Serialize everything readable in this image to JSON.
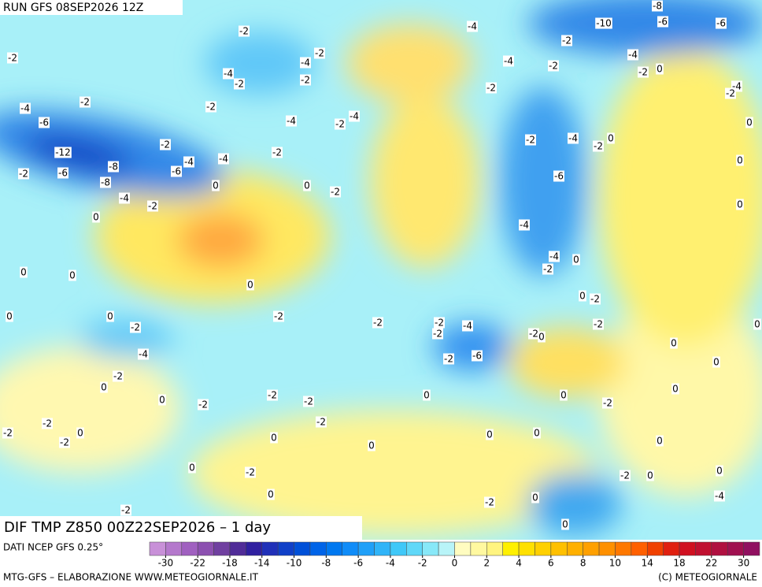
{
  "header": {
    "run": "RUN GFS 08SEP2026 12Z",
    "field": "DIF TMP Z850 00Z22SEP2026 – 1 day"
  },
  "map": {
    "contour_labels": [
      -2,
      -2,
      -4,
      -10,
      -8,
      -6,
      -6,
      -2,
      -4,
      -2,
      -4,
      -2,
      0,
      -2,
      -4,
      -2,
      -4,
      -2,
      -2,
      -4,
      -2,
      -4,
      -2,
      -2,
      -6,
      -4,
      -2,
      -4,
      0,
      -2,
      -2,
      -4,
      -2,
      0,
      -12,
      -2,
      -4,
      -4,
      -8,
      -6,
      -2,
      -6,
      0,
      -8,
      -6,
      0,
      0,
      -2,
      -4,
      -2,
      0,
      -4,
      0,
      -4,
      0,
      -2,
      0,
      0,
      0,
      0,
      -2,
      0,
      -2,
      0,
      -2,
      -2,
      -2,
      -4,
      -2,
      -2,
      0,
      -2,
      0,
      0,
      -4,
      -2,
      -6,
      0,
      -2,
      0,
      0,
      -2,
      -2,
      0,
      0,
      0,
      -2,
      -2,
      -2,
      -2,
      -2,
      0,
      -2,
      0,
      0,
      0,
      0,
      0,
      0,
      -2,
      -2,
      0,
      0,
      0,
      -2,
      0,
      -4,
      0,
      -2
    ]
  },
  "colorbar": {
    "source": "DATI NCEP GFS 0.25°",
    "colors": [
      "#c890d8",
      "#b478cc",
      "#a060c0",
      "#8c50b0",
      "#7040a0",
      "#502c98",
      "#3020a0",
      "#2030b8",
      "#1040c8",
      "#0050d8",
      "#0064e8",
      "#0078f0",
      "#108cf8",
      "#20a0f8",
      "#30b4f8",
      "#40c8f8",
      "#60d8f8",
      "#88e8f8",
      "#b8f4f8",
      "#fffcc0",
      "#fff8a0",
      "#fff480",
      "#fff000",
      "#ffe000",
      "#ffd000",
      "#ffc000",
      "#ffb000",
      "#ffa000",
      "#ff9000",
      "#ff7800",
      "#ff6000",
      "#f04000",
      "#e02010",
      "#d01020",
      "#c01030",
      "#b01040",
      "#a01050",
      "#901060"
    ],
    "ticks": [
      -30,
      -22,
      -18,
      -14,
      -10,
      -8,
      -6,
      -4,
      -2,
      0,
      2,
      4,
      6,
      8,
      10,
      14,
      18,
      22,
      30
    ]
  },
  "footer": {
    "left": "MTG-GFS – ELABORAZIONE WWW.METEOGIORNALE.IT",
    "right": "(C) METEOGIORNALE"
  }
}
